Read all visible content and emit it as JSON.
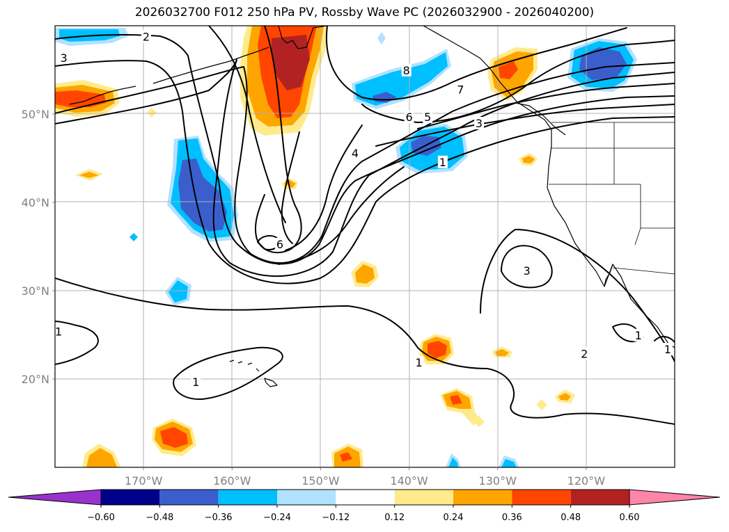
{
  "title": "2026032700 F012 250 hPa PV, Rossby Wave PC (2026032900 - 2026040200)",
  "chart_data": {
    "type": "map",
    "title": "2026032700 F012 250 hPa PV, Rossby Wave PC (2026032900 - 2026040200)",
    "region": "North Pacific / western North America",
    "lon_range": [
      -180,
      -110
    ],
    "lat_range": [
      10,
      60
    ],
    "lon_ticks": [
      {
        "lon": -170,
        "label": "170°W"
      },
      {
        "lon": -160,
        "label": "160°W"
      },
      {
        "lon": -150,
        "label": "150°W"
      },
      {
        "lon": -140,
        "label": "140°W"
      },
      {
        "lon": -130,
        "label": "130°W"
      },
      {
        "lon": -120,
        "label": "120°W"
      }
    ],
    "lat_ticks": [
      {
        "lat": 50,
        "label": "50°N"
      },
      {
        "lat": 40,
        "label": "40°N"
      },
      {
        "lat": 30,
        "label": "30°N"
      },
      {
        "lat": 20,
        "label": "20°N"
      }
    ],
    "colorbar": {
      "extend": "both",
      "boundaries": [
        -0.72,
        -0.6,
        -0.48,
        -0.36,
        -0.24,
        -0.12,
        0.12,
        0.24,
        0.36,
        0.48,
        0.6,
        0.72
      ],
      "colors": [
        "#9932cc",
        "#00008b",
        "#3a5fcd",
        "#00bfff",
        "#b0e2ff",
        "#ffffff",
        "#ffeb8c",
        "#ffa500",
        "#ff4500",
        "#b22222",
        "#ff85a8"
      ],
      "tick_labels": [
        "−0.60",
        "−0.48",
        "−0.36",
        "−0.24",
        "−0.12",
        "0.12",
        "0.24",
        "0.36",
        "0.48",
        "0.60"
      ]
    },
    "pv_contour_labels": [
      {
        "text": "2",
        "lon": -169.7,
        "lat": 58.7
      },
      {
        "text": "3",
        "lon": -179.0,
        "lat": 56.3
      },
      {
        "text": "8",
        "lon": -140.3,
        "lat": 54.9
      },
      {
        "text": "7",
        "lon": -134.2,
        "lat": 52.7
      },
      {
        "text": "6",
        "lon": -140.0,
        "lat": 49.6
      },
      {
        "text": "5",
        "lon": -137.9,
        "lat": 49.6
      },
      {
        "text": "3",
        "lon": -132.1,
        "lat": 48.9
      },
      {
        "text": "4",
        "lon": -146.1,
        "lat": 45.5
      },
      {
        "text": "1",
        "lon": -136.2,
        "lat": 44.5
      },
      {
        "text": "6",
        "lon": -154.6,
        "lat": 35.2
      },
      {
        "text": "3",
        "lon": -126.7,
        "lat": 32.2
      },
      {
        "text": "2",
        "lon": -120.2,
        "lat": 22.8
      },
      {
        "text": "1",
        "lon": -179.6,
        "lat": 25.3
      },
      {
        "text": "1",
        "lon": -138.9,
        "lat": 21.8
      },
      {
        "text": "1",
        "lon": -164.1,
        "lat": 19.6
      },
      {
        "text": "1",
        "lon": -114.1,
        "lat": 24.9
      },
      {
        "text": "1",
        "lon": -110.8,
        "lat": 23.3
      }
    ]
  }
}
